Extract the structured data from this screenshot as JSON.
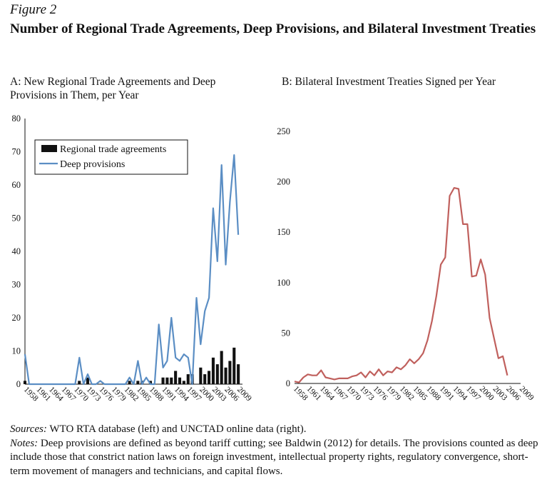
{
  "figure_label": "Figure 2",
  "figure_title": "Number of Regional Trade Agreements, Deep Provisions, and Bilateral Investment Treaties",
  "sources_label": "Sources:",
  "sources_text": "WTO RTA database (left) and UNCTAD online data (right).",
  "notes_label": "Notes:",
  "notes_text": "Deep provisions are defined as beyond tariff cutting; see Baldwin (2012) for details. The provisions counted as deep include those that constrict nation laws on foreign investment, intellectual property rights, regulatory convergence, short-term movement of managers and technicians, and capital flows.",
  "colors": {
    "bars": "#111111",
    "deep": "#5b8ec4",
    "bit": "#c0605d"
  },
  "chart_data": [
    {
      "id": "A",
      "type": "bar",
      "title": "A: New Regional Trade Agreements and Deep Provisions in Them, per Year",
      "ylim": [
        0,
        80
      ],
      "yticks": [
        0,
        10,
        20,
        30,
        40,
        50,
        60,
        70,
        80
      ],
      "xtick_labels": [
        "1958",
        "1961",
        "1964",
        "1967",
        "1970",
        "1973",
        "1976",
        "1979",
        "1982",
        "1985",
        "1988",
        "1991",
        "1994",
        "1997",
        "2000",
        "2003",
        "2006",
        "2009"
      ],
      "x": [
        1958,
        1959,
        1960,
        1961,
        1962,
        1963,
        1964,
        1965,
        1966,
        1967,
        1968,
        1969,
        1970,
        1971,
        1972,
        1973,
        1974,
        1975,
        1976,
        1977,
        1978,
        1979,
        1980,
        1981,
        1982,
        1983,
        1984,
        1985,
        1986,
        1987,
        1988,
        1989,
        1990,
        1991,
        1992,
        1993,
        1994,
        1995,
        1996,
        1997,
        1998,
        1999,
        2000,
        2001,
        2002,
        2003,
        2004,
        2005,
        2006,
        2007,
        2008,
        2009,
        2010
      ],
      "legend": [
        "Regional trade agreements",
        "Deep provisions"
      ],
      "series": [
        {
          "name": "Regional trade agreements",
          "kind": "bar",
          "values": [
            1,
            0,
            0,
            0,
            0,
            0,
            0,
            0,
            0,
            0,
            0,
            0,
            0,
            1,
            0,
            2,
            0,
            0,
            0,
            0,
            0,
            0,
            0,
            0,
            0,
            1,
            0,
            1,
            1,
            0,
            1,
            0,
            0,
            2,
            2,
            2,
            4,
            2,
            1,
            3,
            3,
            0,
            5,
            3,
            4,
            8,
            6,
            10,
            5,
            7,
            11,
            6,
            0
          ]
        },
        {
          "name": "Deep provisions",
          "kind": "line",
          "values": [
            9,
            0,
            0,
            0,
            0,
            0,
            0,
            0,
            0,
            0,
            0,
            0,
            0,
            8,
            0,
            3,
            0,
            0,
            1,
            0,
            0,
            0,
            0,
            0,
            0,
            2,
            0,
            7,
            0,
            2,
            0,
            0,
            18,
            5,
            7,
            20,
            8,
            7,
            9,
            8,
            0,
            26,
            12,
            22,
            26,
            53,
            37,
            66,
            36,
            55,
            69,
            45,
            null
          ]
        }
      ]
    },
    {
      "id": "B",
      "type": "line",
      "title": "B: Bilateral Investment Treaties Signed per Year",
      "ylim": [
        0,
        250
      ],
      "yticks": [
        0,
        50,
        100,
        150,
        200,
        250
      ],
      "xtick_labels": [
        "1958",
        "1961",
        "1964",
        "1967",
        "1970",
        "1973",
        "1976",
        "1979",
        "1982",
        "1985",
        "1988",
        "1991",
        "1994",
        "1997",
        "2000",
        "2003",
        "2006",
        "2009"
      ],
      "series": [
        {
          "name": "Bilateral investment treaties",
          "x": [
            1958,
            1959,
            1960,
            1961,
            1962,
            1963,
            1964,
            1965,
            1966,
            1967,
            1968,
            1969,
            1970,
            1971,
            1972,
            1973,
            1974,
            1975,
            1976,
            1977,
            1978,
            1979,
            1980,
            1981,
            1982,
            1983,
            1984,
            1985,
            1986,
            1987,
            1988,
            1989,
            1990,
            1991,
            1992,
            1993,
            1994,
            1995,
            1996,
            1997,
            1998,
            1999,
            2000,
            2001,
            2002,
            2003,
            2004,
            2005,
            2006
          ],
          "values": [
            2,
            1,
            6,
            9,
            8,
            8,
            13,
            6,
            5,
            4,
            5,
            5,
            5,
            7,
            8,
            11,
            6,
            12,
            8,
            14,
            8,
            12,
            11,
            16,
            14,
            18,
            24,
            20,
            24,
            30,
            43,
            62,
            87,
            118,
            125,
            186,
            194,
            193,
            158,
            158,
            106,
            107,
            123,
            108,
            65,
            45,
            25,
            27,
            8
          ]
        }
      ]
    }
  ]
}
